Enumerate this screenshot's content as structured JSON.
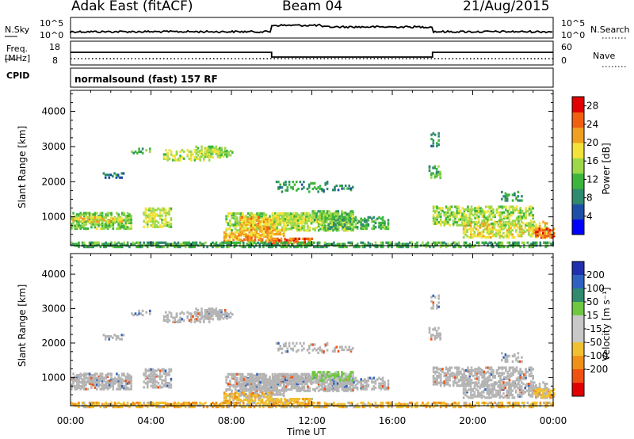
{
  "header": {
    "site": "Adak East (fitACF)",
    "beam": "Beam 04",
    "date": "21/Aug/2015"
  },
  "sky_panel": {
    "left_label": "N.Sky",
    "right_label": "N.Search",
    "left_ticks": [
      "10^5",
      "10^0"
    ],
    "right_ticks": [
      "10^5",
      "10^0"
    ]
  },
  "freq_panel": {
    "left_label": "Freq.",
    "left_unit": "[MHz]",
    "right_label": "Nave",
    "left_ticks": [
      "18",
      "8"
    ],
    "right_ticks": [
      "60",
      "0"
    ]
  },
  "cpid_panel": {
    "label": "CPID",
    "text": "normalsound (fast) 157 RF"
  },
  "colors": {
    "power_scale": [
      "#0000ff",
      "#1d4fa8",
      "#2f8a6e",
      "#3cb53c",
      "#9cd84a",
      "#f2e23a",
      "#f0a020",
      "#f06010",
      "#e00000"
    ],
    "velocity_scale": [
      "#2030b0",
      "#2e62c0",
      "#2f8a6e",
      "#70c840",
      "#c8c8c8",
      "#c8c8c8",
      "#f0c030",
      "#f09018",
      "#f05010",
      "#e00000"
    ],
    "ground_scatter": "#b4b4b4"
  },
  "chart_data": [
    {
      "type": "heatmap",
      "name": "power_panel",
      "ylabel": "Slant Range [km]",
      "xlabel": "Time UT",
      "x_ticks": [
        "00:00",
        "04:00",
        "08:00",
        "12:00",
        "16:00",
        "20:00",
        "00:00"
      ],
      "y_ticks": [
        "1000",
        "2000",
        "3000",
        "4000"
      ],
      "ylim": [
        180,
        4600
      ],
      "xlim_hours": [
        0,
        24
      ],
      "colorbar": {
        "label": "Power [dB]",
        "ticks": [
          "4",
          "8",
          "12",
          "16",
          "20",
          "24",
          "28"
        ],
        "range": [
          0,
          30
        ]
      }
    },
    {
      "type": "heatmap",
      "name": "velocity_panel",
      "ylabel": "Slant Range [km]",
      "xlabel": "Time UT",
      "x_ticks": [
        "00:00",
        "04:00",
        "08:00",
        "12:00",
        "16:00",
        "20:00",
        "00:00"
      ],
      "y_ticks": [
        "1000",
        "2000",
        "3000",
        "4000"
      ],
      "ylim": [
        180,
        4600
      ],
      "xlim_hours": [
        0,
        24
      ],
      "colorbar": {
        "label": "Velocity [m s⁻¹]",
        "ticks": [
          "200",
          "100",
          "50",
          "15",
          "-15",
          "-50",
          "-100",
          "-200"
        ]
      }
    }
  ]
}
